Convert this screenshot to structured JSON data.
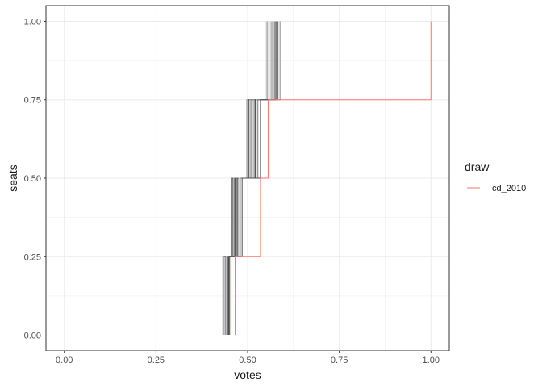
{
  "chart_data": {
    "type": "line",
    "subtype": "step",
    "xlabel": "votes",
    "ylabel": "seats",
    "xlim": [
      0,
      1
    ],
    "ylim": [
      0,
      1
    ],
    "xticks": [
      "0.00",
      "0.25",
      "0.50",
      "0.75",
      "1.00"
    ],
    "yticks": [
      "0.00",
      "0.25",
      "0.50",
      "0.75",
      "1.00"
    ],
    "grid": true,
    "legend": {
      "title": "draw",
      "position": "right",
      "entries": [
        {
          "label": "cd_2010",
          "color": "#F8766D"
        }
      ]
    },
    "colors": {
      "series": "#F8766D",
      "draws": "#4d4d4d",
      "grid": "#ebebeb",
      "panel_border": "#333333"
    },
    "series": [
      {
        "name": "cd_2010",
        "steps_x": [
          0.0,
          0.458,
          0.466,
          0.535,
          0.556,
          1.0
        ],
        "steps_y": [
          0.0,
          0.0,
          0.25,
          0.5,
          0.75,
          1.0
        ]
      }
    ],
    "draws": [
      {
        "thresholds": [
          0.432,
          0.455,
          0.497,
          0.548
        ]
      },
      {
        "thresholds": [
          0.436,
          0.457,
          0.5,
          0.553
        ]
      },
      {
        "thresholds": [
          0.44,
          0.46,
          0.503,
          0.558
        ]
      },
      {
        "thresholds": [
          0.443,
          0.462,
          0.506,
          0.562
        ]
      },
      {
        "thresholds": [
          0.446,
          0.464,
          0.509,
          0.566
        ]
      },
      {
        "thresholds": [
          0.449,
          0.466,
          0.512,
          0.57
        ]
      },
      {
        "thresholds": [
          0.452,
          0.468,
          0.515,
          0.574
        ]
      },
      {
        "thresholds": [
          0.455,
          0.47,
          0.518,
          0.578
        ]
      },
      {
        "thresholds": [
          0.448,
          0.473,
          0.521,
          0.582
        ]
      },
      {
        "thresholds": [
          0.441,
          0.476,
          0.524,
          0.586
        ]
      },
      {
        "thresholds": [
          0.445,
          0.48,
          0.528,
          0.59
        ]
      },
      {
        "thresholds": [
          0.45,
          0.485,
          0.535,
          0.575
        ]
      }
    ]
  }
}
